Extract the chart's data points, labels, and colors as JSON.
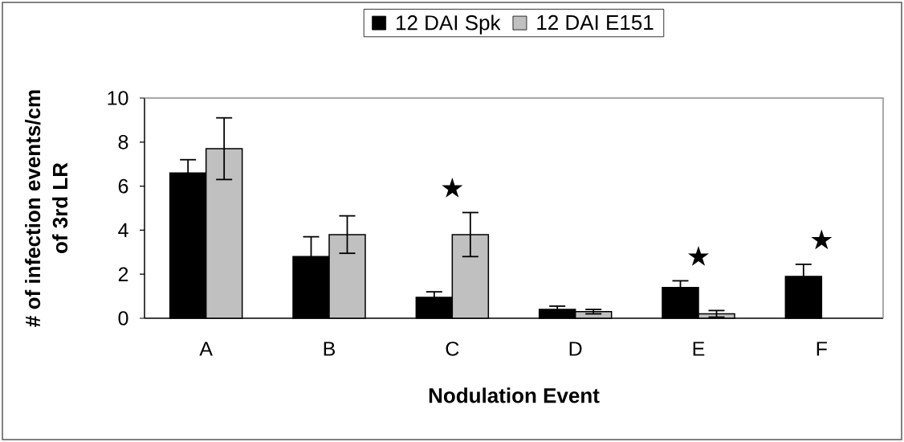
{
  "chart_data": {
    "type": "bar",
    "xlabel": "Nodulation Event",
    "ylabel": "# of infection events/cm of 3rd LR",
    "categories": [
      "A",
      "B",
      "C",
      "D",
      "E",
      "F"
    ],
    "series": [
      {
        "name": "12 DAI Spk",
        "color": "#000000",
        "values": [
          6.6,
          2.8,
          0.95,
          0.4,
          1.4,
          1.9
        ],
        "errors": [
          0.6,
          0.9,
          0.25,
          0.15,
          0.3,
          0.55
        ]
      },
      {
        "name": "12 DAI E151",
        "color": "#c0c0c0",
        "values": [
          7.7,
          3.8,
          3.8,
          0.3,
          0.2,
          null
        ],
        "errors": [
          1.4,
          0.85,
          1.0,
          0.1,
          0.15,
          null
        ]
      }
    ],
    "ylim": [
      0,
      10
    ],
    "yticks": [
      0,
      2,
      4,
      6,
      8,
      10
    ],
    "legend": "top",
    "annotations": [
      "★",
      "★",
      "★"
    ]
  }
}
